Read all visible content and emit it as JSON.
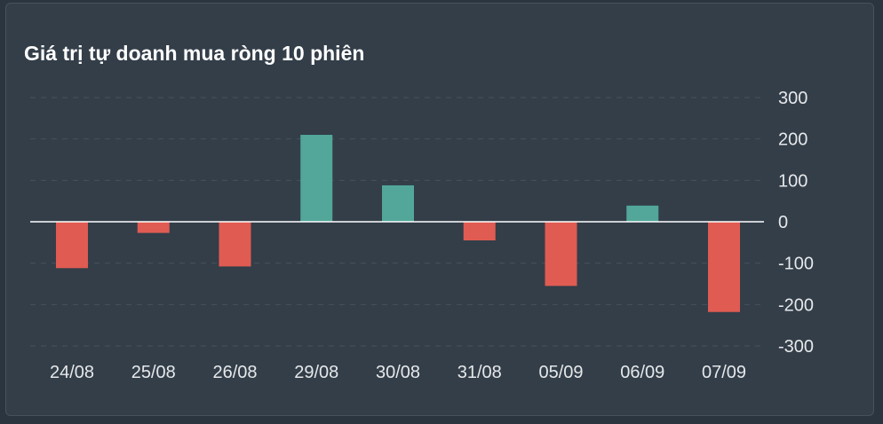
{
  "chart_data": {
    "type": "bar",
    "title": "Giá trị tự doanh mua ròng 10 phiên",
    "xlabel": "",
    "ylabel": "",
    "categories": [
      "24/08",
      "25/08",
      "26/08",
      "29/08",
      "30/08",
      "31/08",
      "05/09",
      "06/09",
      "07/09"
    ],
    "values": [
      -112,
      -27,
      -108,
      210,
      88,
      -45,
      -155,
      39,
      -218
    ],
    "ylim": [
      -300,
      300
    ],
    "yticks": [
      300,
      200,
      100,
      0,
      -100,
      -200,
      -300
    ],
    "ytick_labels": [
      "300",
      "200",
      "100",
      "0",
      "-100",
      "-200",
      "-300"
    ],
    "axis_position": "right",
    "grid": true,
    "colors": {
      "positive": "#52a79a",
      "negative": "#e05b52",
      "background": "#333e49",
      "gridline": "#46525e",
      "zero_line": "#ffffff",
      "text": "#e6e8ea"
    }
  }
}
